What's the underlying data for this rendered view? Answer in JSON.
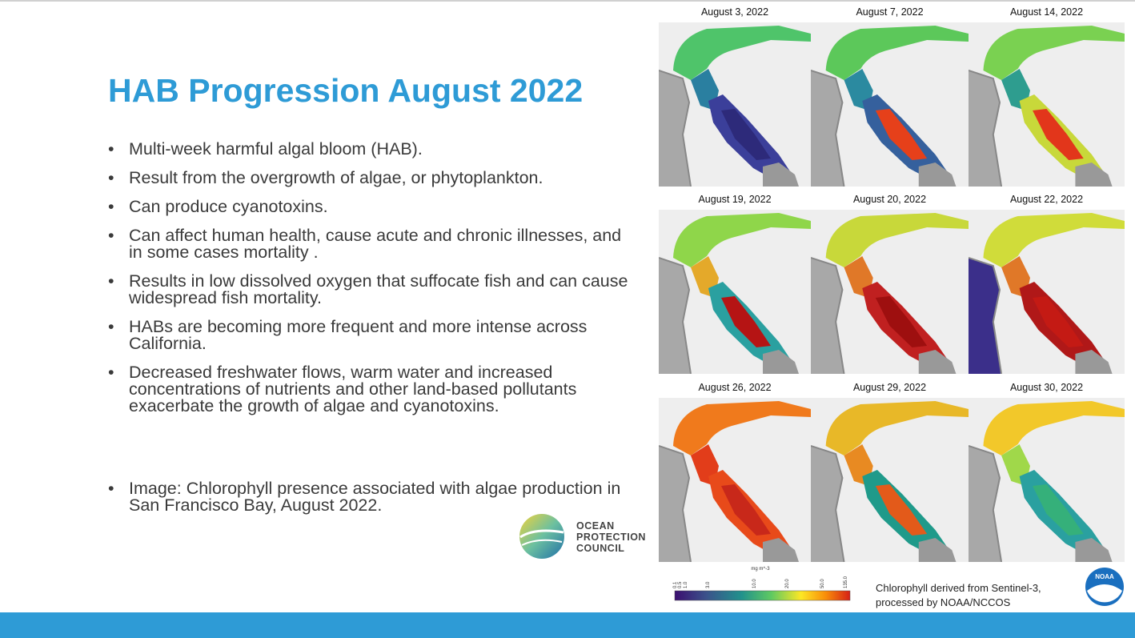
{
  "title": "HAB Progression August 2022",
  "bullets": [
    "Multi-week harmful algal bloom (HAB).",
    "Result from the overgrowth of algae, or phytoplankton.",
    "Can produce cyanotoxins.",
    "Can affect human health, cause acute and chronic illnesses, and in some cases mortality .",
    "Results in low dissolved oxygen that suffocate fish and can cause widespread fish mortality.",
    "HABs are becoming more frequent and more intense across California.",
    "Decreased freshwater flows, warm water and increased concentrations of nutrients and other land-based pollutants exacerbate the growth of algae and cyanotoxins.",
    "Image: Chlorophyll presence associated with algae production in San Francisco Bay, August 2022."
  ],
  "logo": {
    "lines": [
      "OCEAN",
      "PROTECTION",
      "COUNCIL"
    ]
  },
  "maps": [
    "August 3, 2022",
    "August 7, 2022",
    "August 14, 2022",
    "August 19, 2022",
    "August 20, 2022",
    "August 22, 2022",
    "August 26, 2022",
    "August 29, 2022",
    "August 30, 2022"
  ],
  "colorbar": {
    "unit": "mg m^-3",
    "ticks": [
      "0.1",
      "0.5",
      "1.0",
      "3.0",
      "10.0",
      "20.0",
      "50.0",
      "135.0"
    ]
  },
  "caption": [
    "Chlorophyll derived from Sentinel-3,",
    "processed by NOAA/NCCOS"
  ],
  "noaa": "NOAA"
}
